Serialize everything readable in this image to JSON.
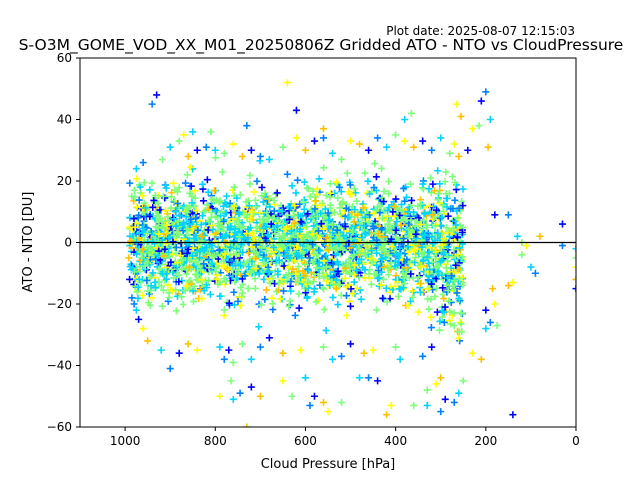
{
  "chart_data": {
    "type": "scatter",
    "plot_date": "Plot date: 2025-08-07 12:15:03",
    "title": "S-O3M_GOME_VOD_XX_M01_20250806Z Gridded ATO - NTO vs CloudPressure",
    "xlabel": "Cloud Pressure [hPa]",
    "ylabel": "ATO - NTO [DU]",
    "xlim": [
      1100,
      0
    ],
    "ylim": [
      -60,
      60
    ],
    "x_ticks": [
      1000,
      800,
      600,
      400,
      200,
      0
    ],
    "y_ticks": [
      -60,
      -40,
      -20,
      0,
      20,
      40,
      60
    ],
    "reference_line_y": 0,
    "marker": "+",
    "colors": [
      "#0000ff",
      "#0080ff",
      "#00d4ff",
      "#7dff7a",
      "#ffff00",
      "#ffc000"
    ],
    "dense_band": {
      "x_range": [
        990,
        250
      ],
      "y_core": [
        -20,
        20
      ],
      "description_points": "approximate cloud of points"
    },
    "points": [
      [
        930,
        48
      ],
      [
        940,
        45
      ],
      [
        850,
        36
      ],
      [
        810,
        36
      ],
      [
        640,
        52
      ],
      [
        560,
        37
      ],
      [
        620,
        43
      ],
      [
        730,
        38
      ],
      [
        380,
        40
      ],
      [
        365,
        42
      ],
      [
        265,
        45
      ],
      [
        255,
        41
      ],
      [
        210,
        46
      ],
      [
        200,
        49
      ],
      [
        190,
        40
      ],
      [
        215,
        38
      ],
      [
        230,
        37
      ],
      [
        195,
        31
      ],
      [
        180,
        9
      ],
      [
        150,
        9
      ],
      [
        130,
        2
      ],
      [
        120,
        0
      ],
      [
        110,
        -1
      ],
      [
        80,
        2
      ],
      [
        30,
        6
      ],
      [
        30,
        -1
      ],
      [
        0,
        -2
      ],
      [
        0,
        -5
      ],
      [
        0,
        -8
      ],
      [
        0,
        -12
      ],
      [
        0,
        -15
      ],
      [
        90,
        -10
      ],
      [
        100,
        -8
      ],
      [
        120,
        -4
      ],
      [
        140,
        -13
      ],
      [
        150,
        -14
      ],
      [
        140,
        -56
      ],
      [
        300,
        -55
      ],
      [
        330,
        -53
      ],
      [
        360,
        -53
      ],
      [
        410,
        -53
      ],
      [
        420,
        -56
      ],
      [
        440,
        -45
      ],
      [
        460,
        -44
      ],
      [
        480,
        -44
      ],
      [
        520,
        -52
      ],
      [
        550,
        -55
      ],
      [
        560,
        -52
      ],
      [
        580,
        -50
      ],
      [
        590,
        -53
      ],
      [
        600,
        -44
      ],
      [
        630,
        -50
      ],
      [
        650,
        -45
      ],
      [
        700,
        -50
      ],
      [
        720,
        -47
      ],
      [
        745,
        -49
      ],
      [
        760,
        -51
      ],
      [
        765,
        -45
      ],
      [
        790,
        -50
      ],
      [
        730,
        -60
      ],
      [
        770,
        -35
      ],
      [
        780,
        -38
      ],
      [
        790,
        -34
      ],
      [
        760,
        -39
      ],
      [
        840,
        -35
      ],
      [
        860,
        -33
      ],
      [
        880,
        -36
      ],
      [
        900,
        -41
      ],
      [
        920,
        -35
      ],
      [
        330,
        -48
      ],
      [
        310,
        -46
      ],
      [
        300,
        -44
      ],
      [
        290,
        -51
      ],
      [
        270,
        -52
      ],
      [
        260,
        -49
      ],
      [
        250,
        -45
      ],
      [
        230,
        -36
      ],
      [
        210,
        -38
      ],
      [
        200,
        -22
      ],
      [
        190,
        -26
      ],
      [
        200,
        -28
      ],
      [
        175,
        -27
      ],
      [
        180,
        -20
      ],
      [
        185,
        -15
      ],
      [
        320,
        -34
      ],
      [
        340,
        -37
      ],
      [
        390,
        -38
      ],
      [
        400,
        -34
      ],
      [
        450,
        -35
      ],
      [
        470,
        -36
      ],
      [
        500,
        -33
      ],
      [
        520,
        -37
      ],
      [
        540,
        -38
      ],
      [
        560,
        -34
      ],
      [
        610,
        -35
      ],
      [
        650,
        -36
      ],
      [
        680,
        -31
      ],
      [
        700,
        -34
      ],
      [
        720,
        -38
      ],
      [
        740,
        -33
      ],
      [
        960,
        -28
      ],
      [
        950,
        -32
      ],
      [
        970,
        -25
      ],
      [
        980,
        -20
      ],
      [
        900,
        31
      ],
      [
        880,
        33
      ],
      [
        870,
        35
      ],
      [
        860,
        28
      ],
      [
        840,
        30
      ],
      [
        820,
        31
      ],
      [
        800,
        30
      ],
      [
        780,
        29
      ],
      [
        760,
        32
      ],
      [
        740,
        28
      ],
      [
        720,
        30
      ],
      [
        700,
        28
      ],
      [
        680,
        27
      ],
      [
        650,
        31
      ],
      [
        620,
        34
      ],
      [
        600,
        30
      ],
      [
        580,
        33
      ],
      [
        560,
        34
      ],
      [
        540,
        29
      ],
      [
        520,
        27
      ],
      [
        500,
        33
      ],
      [
        480,
        32
      ],
      [
        460,
        30
      ],
      [
        440,
        34
      ],
      [
        420,
        31
      ],
      [
        400,
        35
      ],
      [
        380,
        33
      ],
      [
        360,
        31
      ],
      [
        340,
        33
      ],
      [
        320,
        30
      ],
      [
        300,
        34
      ],
      [
        280,
        29
      ],
      [
        270,
        32
      ],
      [
        260,
        28
      ],
      [
        240,
        30
      ],
      [
        960,
        26
      ],
      [
        975,
        24
      ],
      [
        985,
        15
      ],
      [
        990,
        5
      ],
      [
        992,
        -5
      ],
      [
        990,
        -12
      ],
      [
        985,
        -18
      ],
      [
        975,
        -22
      ]
    ]
  }
}
